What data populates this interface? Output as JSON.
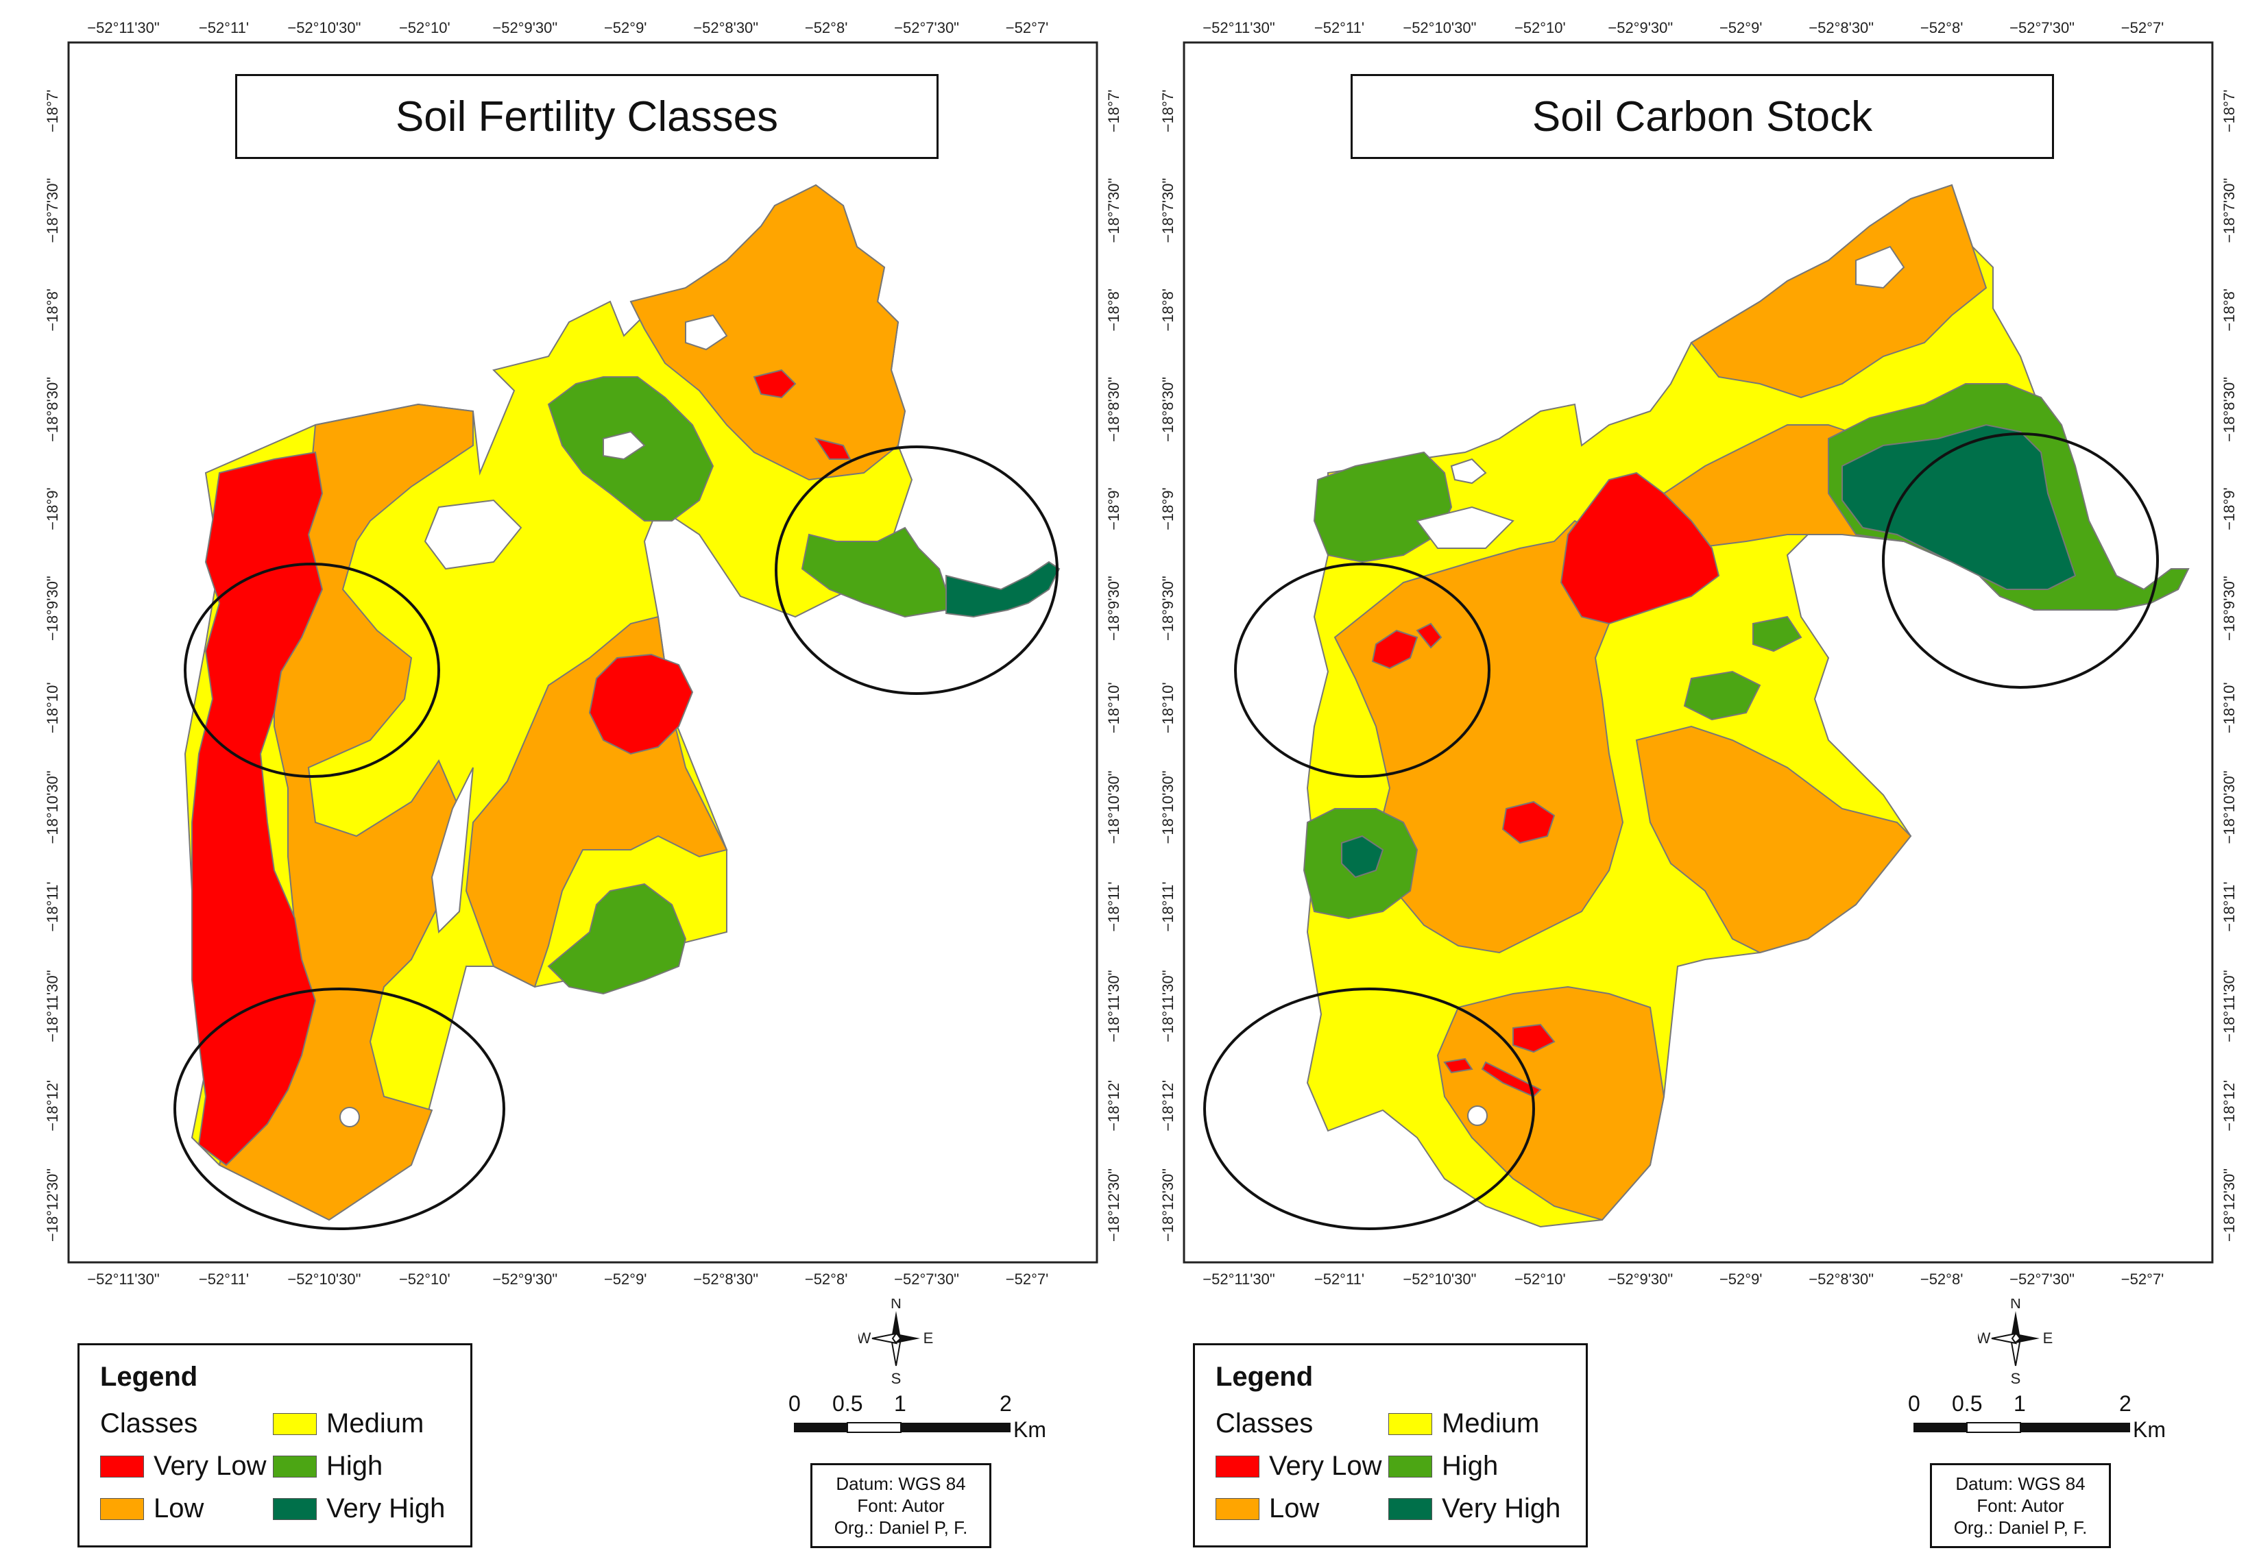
{
  "colors": {
    "very_low": "#ff0000",
    "low": "#ffa500",
    "medium": "#ffff00",
    "high": "#4ca614",
    "very_high": "#00704a",
    "circle": "#111111"
  },
  "maps": [
    {
      "title": "Soil Fertility Classes",
      "top_ticks": [
        "−52°11'30\"",
        "−52°11'",
        "−52°10'30\"",
        "−52°10'",
        "−52°9'30\"",
        "−52°9'",
        "−52°8'30\"",
        "−52°8'",
        "−52°7'30\"",
        "−52°7'"
      ],
      "bottom_ticks": [
        "−52°11'30\"",
        "−52°11'",
        "−52°10'30\"",
        "−52°10'",
        "−52°9'30\"",
        "−52°9'",
        "−52°8'30\"",
        "−52°8'",
        "−52°7'30\"",
        "−52°7'"
      ],
      "left_ticks": [
        "−18°7'",
        "−18°7'30\"",
        "−18°8'",
        "−18°8'30\"",
        "−18°9'",
        "−18°9'30\"",
        "−18°10'",
        "−18°10'30\"",
        "−18°11'",
        "−18°11'30\"",
        "−18°12'",
        "−18°12'30\""
      ],
      "right_ticks": [
        "−18°7'",
        "−18°7'30\"",
        "−18°8'",
        "−18°8'30\"",
        "−18°9'",
        "−18°9'30\"",
        "−18°10'",
        "−18°10'30\"",
        "−18°11'",
        "−18°11'30\"",
        "−18°12'",
        "−18°12'30\""
      ]
    },
    {
      "title": "Soil Carbon Stock",
      "top_ticks": [
        "−52°11'30\"",
        "−52°11'",
        "−52°10'30\"",
        "−52°10'",
        "−52°9'30\"",
        "−52°9'",
        "−52°8'30\"",
        "−52°8'",
        "−52°7'30\"",
        "−52°7'"
      ],
      "bottom_ticks": [
        "−52°11'30\"",
        "−52°11'",
        "−52°10'30\"",
        "−52°10'",
        "−52°9'30\"",
        "−52°9'",
        "−52°8'30\"",
        "−52°8'",
        "−52°7'30\"",
        "−52°7'"
      ],
      "left_ticks": [
        "−18°7'",
        "−18°7'30\"",
        "−18°8'",
        "−18°8'30\"",
        "−18°9'",
        "−18°9'30\"",
        "−18°10'",
        "−18°10'30\"",
        "−18°11'",
        "−18°11'30\"",
        "−18°12'",
        "−18°12'30\""
      ],
      "right_ticks": [
        "−18°7'",
        "−18°7'30\"",
        "−18°8'",
        "−18°8'30\"",
        "−18°9'",
        "−18°9'30\"",
        "−18°10'",
        "−18°10'30\"",
        "−18°11'",
        "−18°11'30\"",
        "−18°12'",
        "−18°12'30\""
      ]
    }
  ],
  "legend": {
    "title": "Legend",
    "classes_label": "Classes",
    "very_low": "Very Low",
    "low": "Low",
    "medium": "Medium",
    "high": "High",
    "very_high": "Very High"
  },
  "north_arrow": {
    "n": "N",
    "s": "S",
    "e": "E",
    "w": "W"
  },
  "scale_bar": {
    "labels": [
      "0",
      "0.5",
      "1",
      "2"
    ],
    "unit": "Km"
  },
  "info": {
    "datum": "Datum: WGS 84",
    "font": "Font: Autor",
    "org": "Org.: Daniel P, F."
  }
}
